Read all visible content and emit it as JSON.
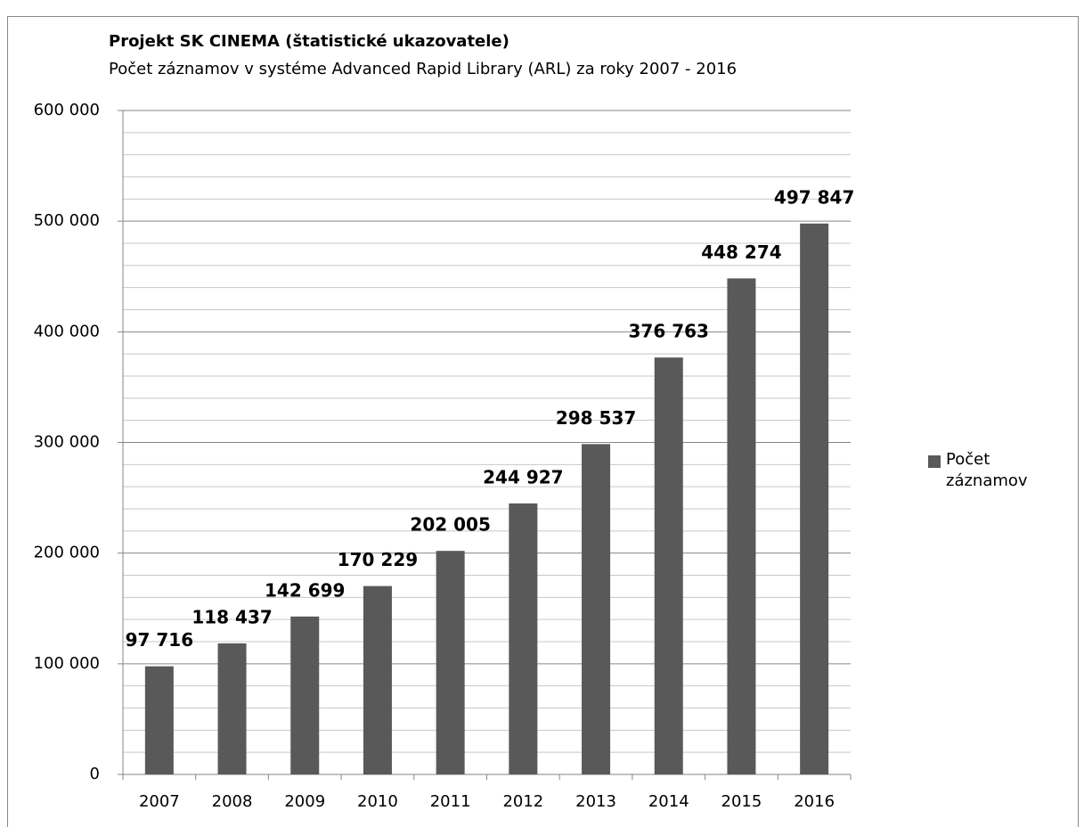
{
  "chart_data": {
    "type": "bar",
    "title": "Projekt SK CINEMA (štatistické ukazovatele)",
    "subtitle": "Počet záznamov v systéme Advanced Rapid Library (ARL) za roky 2007 - 2016",
    "categories": [
      "2007",
      "2008",
      "2009",
      "2010",
      "2011",
      "2012",
      "2013",
      "2014",
      "2015",
      "2016"
    ],
    "series": [
      {
        "name": "Počet záznamov",
        "color": "#595959",
        "values": [
          97716,
          118437,
          142699,
          170229,
          202005,
          244927,
          298537,
          376763,
          448274,
          497847
        ],
        "value_labels": [
          "97 716",
          "118 437",
          "142 699",
          "170 229",
          "202 005",
          "244 927",
          "298 537",
          "376 763",
          "448 274",
          "497 847"
        ]
      }
    ],
    "ylim": [
      0,
      600000
    ],
    "yticks": [
      0,
      {
        "value": 100000,
        "label": "100 000"
      },
      {
        "value": 200000,
        "label": "200 000"
      },
      {
        "value": 300000,
        "label": "300 000"
      },
      {
        "value": 400000,
        "label": "400 000"
      },
      {
        "value": 500000,
        "label": "500 000"
      },
      {
        "value": 600000,
        "label": "600 000"
      }
    ],
    "minor_yticks": [
      20000,
      40000,
      60000,
      80000,
      120000,
      140000,
      160000,
      180000,
      220000,
      240000,
      260000,
      280000,
      320000,
      340000,
      360000,
      380000,
      420000,
      440000,
      460000,
      480000,
      520000,
      540000,
      560000,
      580000
    ],
    "grid": true,
    "legend": "right"
  }
}
